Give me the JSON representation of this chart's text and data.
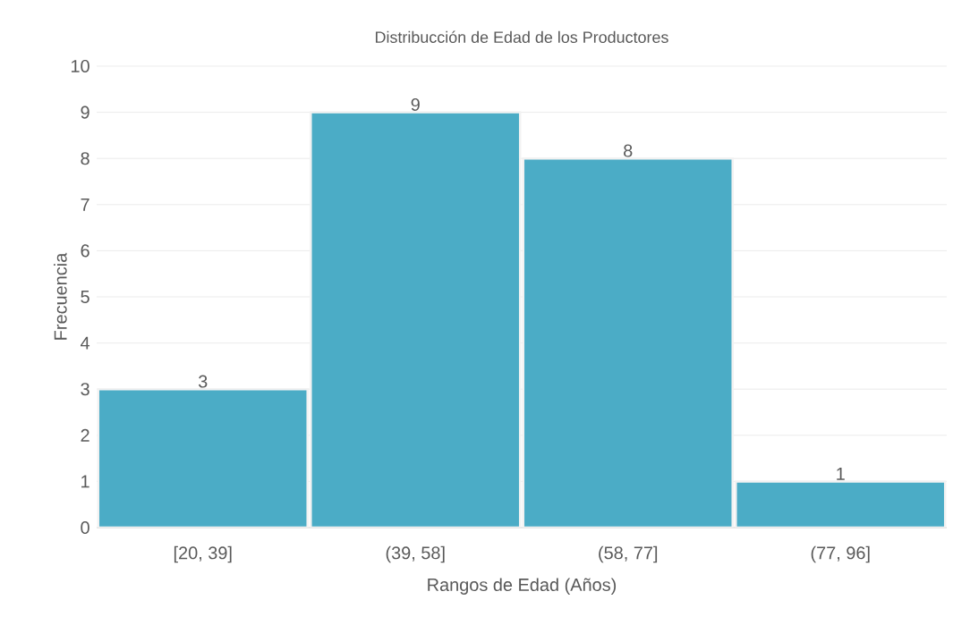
{
  "chart_data": {
    "type": "bar",
    "title": "Distribucción de Edad de los Productores",
    "xlabel": "Rangos de Edad (Años)",
    "ylabel": "Frecuencia",
    "categories": [
      "[20, 39]",
      "(39, 58]",
      "(58, 77]",
      "(77, 96]"
    ],
    "values": [
      3,
      9,
      8,
      1
    ],
    "color": "#4bacc6",
    "ylim": [
      0,
      10
    ],
    "yticks": [
      0,
      1,
      2,
      3,
      4,
      5,
      6,
      7,
      8,
      9,
      10
    ],
    "grid": "y",
    "data_labels": true
  }
}
